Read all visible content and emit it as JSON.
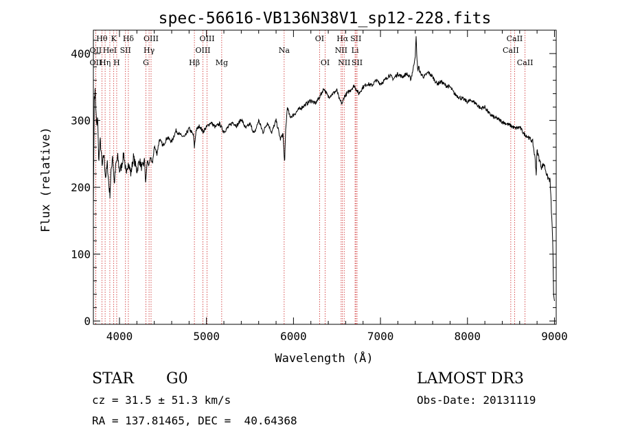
{
  "chart_data": {
    "type": "line",
    "title": "spec-56616-VB136N38V1_sp12-228.fits",
    "xlabel": "Wavelength (Å)",
    "ylabel": "Flux (relative)",
    "xlim": [
      3700,
      9020
    ],
    "ylim": [
      -5,
      435
    ],
    "xticks": [
      4000,
      5000,
      6000,
      7000,
      8000,
      9000
    ],
    "yticks": [
      0,
      100,
      200,
      300,
      400
    ],
    "grid": false,
    "series": [
      {
        "x": [
          3700,
          3710,
          3720,
          3730,
          3740,
          3750,
          3760,
          3780,
          3800,
          3820,
          3840,
          3860,
          3880,
          3890,
          3900,
          3920,
          3940,
          3960,
          3980,
          4000,
          4020,
          4050,
          4080,
          4100,
          4130,
          4160,
          4200,
          4230,
          4260,
          4290,
          4300,
          4320,
          4340,
          4360,
          4380,
          4400,
          4430,
          4460,
          4500,
          4550,
          4600,
          4650,
          4700,
          4750,
          4800,
          4850,
          4861,
          4880,
          4920,
          4960,
          5000,
          5050,
          5100,
          5150,
          5200,
          5250,
          5300,
          5350,
          5400,
          5450,
          5500,
          5550,
          5600,
          5650,
          5700,
          5750,
          5800,
          5850,
          5880,
          5893,
          5900,
          5910,
          5930,
          5960,
          6000,
          6050,
          6100,
          6150,
          6200,
          6250,
          6300,
          6350,
          6400,
          6450,
          6500,
          6530,
          6563,
          6580,
          6600,
          6650,
          6700,
          6750,
          6800,
          6850,
          6900,
          6950,
          7000,
          7050,
          7100,
          7150,
          7200,
          7250,
          7300,
          7350,
          7380,
          7400,
          7410,
          7420,
          7430,
          7440,
          7460,
          7500,
          7550,
          7600,
          7650,
          7700,
          7750,
          7800,
          7850,
          7900,
          7950,
          8000,
          8050,
          8100,
          8150,
          8200,
          8250,
          8300,
          8350,
          8400,
          8450,
          8500,
          8550,
          8600,
          8650,
          8700,
          8750,
          8780,
          8790,
          8800,
          8820,
          8850,
          8880,
          8900,
          8920,
          8950,
          8980,
          8990,
          9000
        ],
        "values": [
          170,
          330,
          345,
          310,
          290,
          305,
          240,
          270,
          230,
          250,
          215,
          235,
          200,
          190,
          215,
          250,
          205,
          235,
          245,
          225,
          230,
          250,
          215,
          240,
          220,
          245,
          225,
          240,
          228,
          240,
          205,
          240,
          232,
          245,
          235,
          262,
          250,
          272,
          262,
          275,
          268,
          285,
          278,
          275,
          288,
          278,
          260,
          285,
          292,
          283,
          290,
          297,
          290,
          295,
          283,
          290,
          297,
          292,
          302,
          288,
          295,
          280,
          300,
          282,
          297,
          282,
          300,
          272,
          280,
          245,
          240,
          285,
          320,
          305,
          308,
          315,
          320,
          325,
          330,
          325,
          335,
          348,
          335,
          340,
          345,
          330,
          325,
          335,
          338,
          345,
          352,
          340,
          350,
          355,
          352,
          360,
          355,
          360,
          368,
          362,
          370,
          365,
          370,
          362,
          380,
          398,
          425,
          390,
          375,
          380,
          370,
          365,
          372,
          365,
          355,
          358,
          352,
          350,
          340,
          335,
          332,
          328,
          330,
          325,
          318,
          320,
          310,
          305,
          302,
          298,
          295,
          292,
          288,
          290,
          280,
          275,
          268,
          240,
          220,
          255,
          245,
          230,
          235,
          225,
          215,
          210,
          120,
          40,
          30
        ]
      }
    ],
    "line_markers": [
      {
        "label": "Hθ",
        "x": 3798,
        "row": 0
      },
      {
        "label": "K",
        "x": 3934,
        "row": 0
      },
      {
        "label": "Hδ",
        "x": 4102,
        "row": 0
      },
      {
        "label": "OIII",
        "x": 4363,
        "row": 0
      },
      {
        "label": "OIII",
        "x": 5007,
        "row": 0
      },
      {
        "label": "OI",
        "x": 6300,
        "row": 0
      },
      {
        "label": "Hα",
        "x": 6563,
        "row": 0
      },
      {
        "label": "SII",
        "x": 6717,
        "row": 0
      },
      {
        "label": "CaII",
        "x": 8542,
        "row": 0
      },
      {
        "label": "OII",
        "x": 3727,
        "row": 1
      },
      {
        "label": "HeI",
        "x": 3889,
        "row": 1
      },
      {
        "label": "SII",
        "x": 4069,
        "row": 1
      },
      {
        "label": "Hγ",
        "x": 4340,
        "row": 1
      },
      {
        "label": "OIII",
        "x": 4959,
        "row": 1
      },
      {
        "label": "Na",
        "x": 5893,
        "row": 1
      },
      {
        "label": "NII",
        "x": 6548,
        "row": 1
      },
      {
        "label": "Li",
        "x": 6708,
        "row": 1
      },
      {
        "label": "CaII",
        "x": 8498,
        "row": 1
      },
      {
        "label": "OII",
        "x": 3727,
        "row": 2
      },
      {
        "label": "Hη",
        "x": 3835,
        "row": 2
      },
      {
        "label": "H",
        "x": 3968,
        "row": 2
      },
      {
        "label": "G",
        "x": 4304,
        "row": 2
      },
      {
        "label": "Hβ",
        "x": 4861,
        "row": 2
      },
      {
        "label": "Mg",
        "x": 5175,
        "row": 2
      },
      {
        "label": "OI",
        "x": 6364,
        "row": 2
      },
      {
        "label": "NII",
        "x": 6583,
        "row": 2
      },
      {
        "label": "SII",
        "x": 6731,
        "row": 2
      },
      {
        "label": "CaII",
        "x": 8662,
        "row": 2
      }
    ]
  },
  "info": {
    "object_class": "STAR",
    "subclass": "G0",
    "survey": "LAMOST DR3",
    "cz": "cz = 31.5 ± 51.3 km/s",
    "obs_date": "Obs-Date: 20131119",
    "coords": "RA = 137.81465, DEC =  40.64368"
  }
}
